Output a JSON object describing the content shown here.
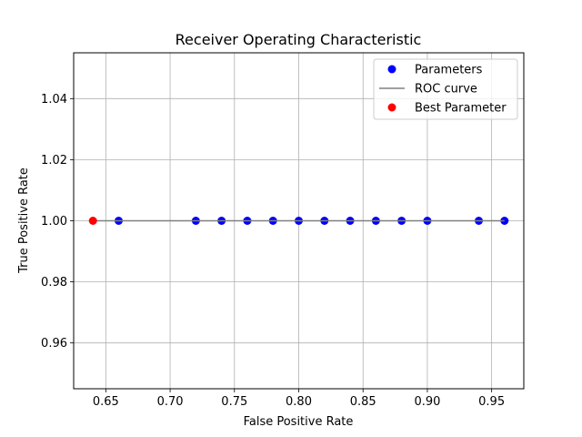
{
  "chart_data": {
    "type": "scatter",
    "title": "Receiver Operating Characteristic",
    "xlabel": "False Positive Rate",
    "ylabel": "True Positive Rate",
    "xlim": [
      0.625,
      0.975
    ],
    "ylim": [
      0.945,
      1.055
    ],
    "xticks": [
      0.65,
      0.7,
      0.75,
      0.8,
      0.85,
      0.9,
      0.95
    ],
    "yticks": [
      0.96,
      0.98,
      1.0,
      1.02,
      1.04
    ],
    "xtick_labels": [
      "0.65",
      "0.70",
      "0.75",
      "0.80",
      "0.85",
      "0.90",
      "0.95"
    ],
    "ytick_labels": [
      "0.96",
      "0.98",
      "1.00",
      "1.02",
      "1.04"
    ],
    "grid": true,
    "legend_position": "top-right",
    "series": [
      {
        "name": "Parameters",
        "kind": "scatter",
        "color": "#0000ff",
        "x": [
          0.66,
          0.72,
          0.74,
          0.76,
          0.78,
          0.8,
          0.82,
          0.84,
          0.86,
          0.88,
          0.9,
          0.94,
          0.96
        ],
        "y": [
          1.0,
          1.0,
          1.0,
          1.0,
          1.0,
          1.0,
          1.0,
          1.0,
          1.0,
          1.0,
          1.0,
          1.0,
          1.0
        ]
      },
      {
        "name": "ROC curve",
        "kind": "line",
        "color": "#808080",
        "x": [
          0.64,
          0.96
        ],
        "y": [
          1.0,
          1.0
        ]
      },
      {
        "name": "Best Parameter",
        "kind": "scatter",
        "color": "#ff0000",
        "x": [
          0.64
        ],
        "y": [
          1.0
        ]
      }
    ]
  }
}
